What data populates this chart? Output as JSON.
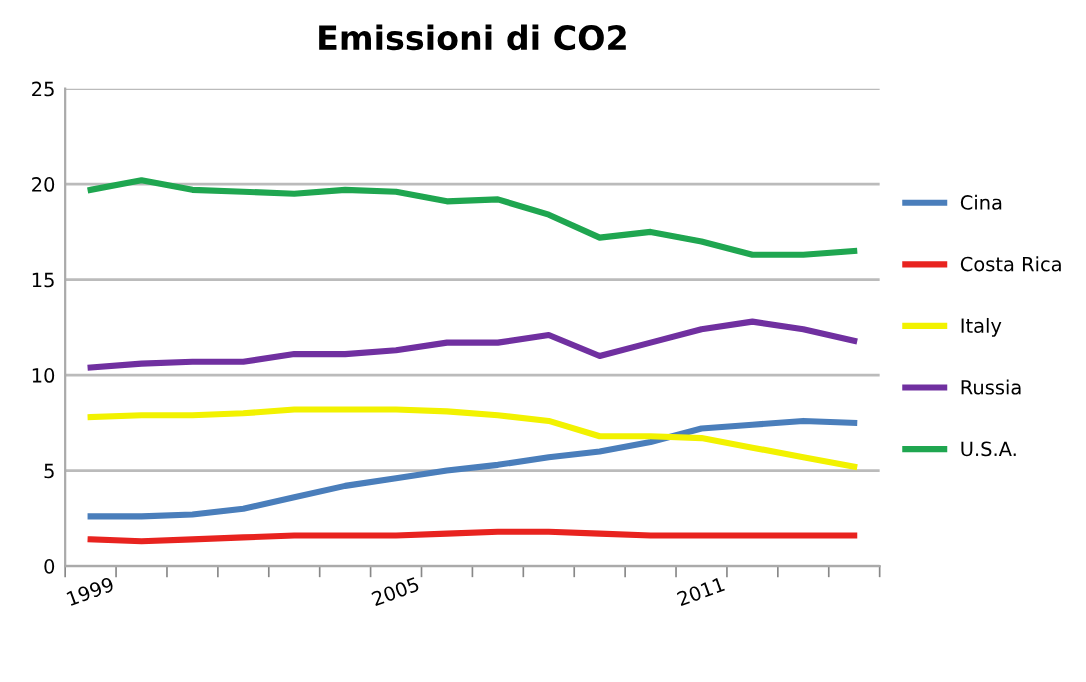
{
  "chart_data": {
    "type": "line",
    "title": "Emissioni di CO2",
    "categories": [
      "1999",
      null,
      null,
      null,
      null,
      null,
      "2005",
      null,
      null,
      null,
      null,
      null,
      "2011",
      null,
      null,
      null
    ],
    "series": [
      {
        "name": "Cina",
        "color": "#4a7ebb",
        "values": [
          2.6,
          2.6,
          2.7,
          3.0,
          3.6,
          4.2,
          4.6,
          5.0,
          5.3,
          5.7,
          6.0,
          6.5,
          7.2,
          7.4,
          7.6,
          7.5
        ]
      },
      {
        "name": "Costa Rica",
        "color": "#e8231f",
        "values": [
          1.4,
          1.3,
          1.4,
          1.5,
          1.6,
          1.6,
          1.6,
          1.7,
          1.8,
          1.8,
          1.7,
          1.6,
          1.6,
          1.6,
          1.6,
          1.6
        ]
      },
      {
        "name": "Italy",
        "color": "#f2f200",
        "values": [
          7.8,
          7.9,
          7.9,
          8.0,
          8.2,
          8.2,
          8.2,
          8.1,
          7.9,
          7.6,
          6.8,
          6.8,
          6.7,
          6.2,
          5.7,
          5.2
        ]
      },
      {
        "name": "Russia",
        "color": "#7030a0",
        "values": [
          10.4,
          10.6,
          10.7,
          10.7,
          11.1,
          11.1,
          11.3,
          11.7,
          11.7,
          12.1,
          11.0,
          11.7,
          12.4,
          12.8,
          12.4,
          11.8
        ]
      },
      {
        "name": "U.S.A.",
        "color": "#1fa650",
        "values": [
          19.7,
          20.2,
          19.7,
          19.6,
          19.5,
          19.7,
          19.6,
          19.1,
          19.2,
          18.4,
          17.2,
          17.5,
          17.0,
          16.3,
          16.3,
          16.5
        ]
      }
    ],
    "ylim": [
      0,
      25
    ],
    "yticks": [
      0,
      5,
      10,
      15,
      20,
      25
    ],
    "grid": "y",
    "legend": "right",
    "marker": "none",
    "line_style": "solid"
  }
}
